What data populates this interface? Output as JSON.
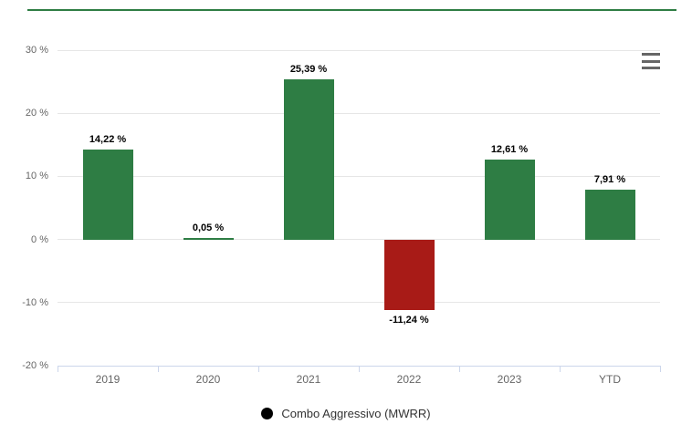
{
  "chart_data": {
    "type": "bar",
    "title": "",
    "categories": [
      "2019",
      "2020",
      "2021",
      "2022",
      "2023",
      "YTD"
    ],
    "series": [
      {
        "name": "Combo Aggressivo (MWRR)",
        "values": [
          14.22,
          0.05,
          25.39,
          -11.24,
          12.61,
          7.91
        ],
        "value_labels": [
          "14,22 %",
          "0,05 %",
          "25,39 %",
          "-11,24 %",
          "12,61 %",
          "7,91 %"
        ]
      }
    ],
    "ylim": [
      -20,
      30
    ],
    "yticks": [
      30,
      20,
      10,
      0,
      -10,
      -20
    ],
    "ytick_labels": [
      "30 %",
      "20 %",
      "10 %",
      "0 %",
      "-10 %",
      "-20 %"
    ],
    "xlabel": "",
    "ylabel": "",
    "grid": true,
    "legend_position": "bottom"
  },
  "legend": {
    "label": "Combo Aggressivo (MWRR)",
    "marker": "circle-icon"
  },
  "toolbar": {
    "menu_icon": "hamburger-menu-icon"
  },
  "colors": {
    "positive_bar": "#2e7d44",
    "negative_bar": "#a81b17",
    "accent_line": "#2e7d44",
    "gridline": "#e6e6e6",
    "axis_line": "#ccd6eb",
    "tick_label": "#666666",
    "data_label": "#000000",
    "legend_text": "#333333",
    "menu_icon": "#666666",
    "legend_marker": "#000000",
    "background": "#ffffff"
  }
}
